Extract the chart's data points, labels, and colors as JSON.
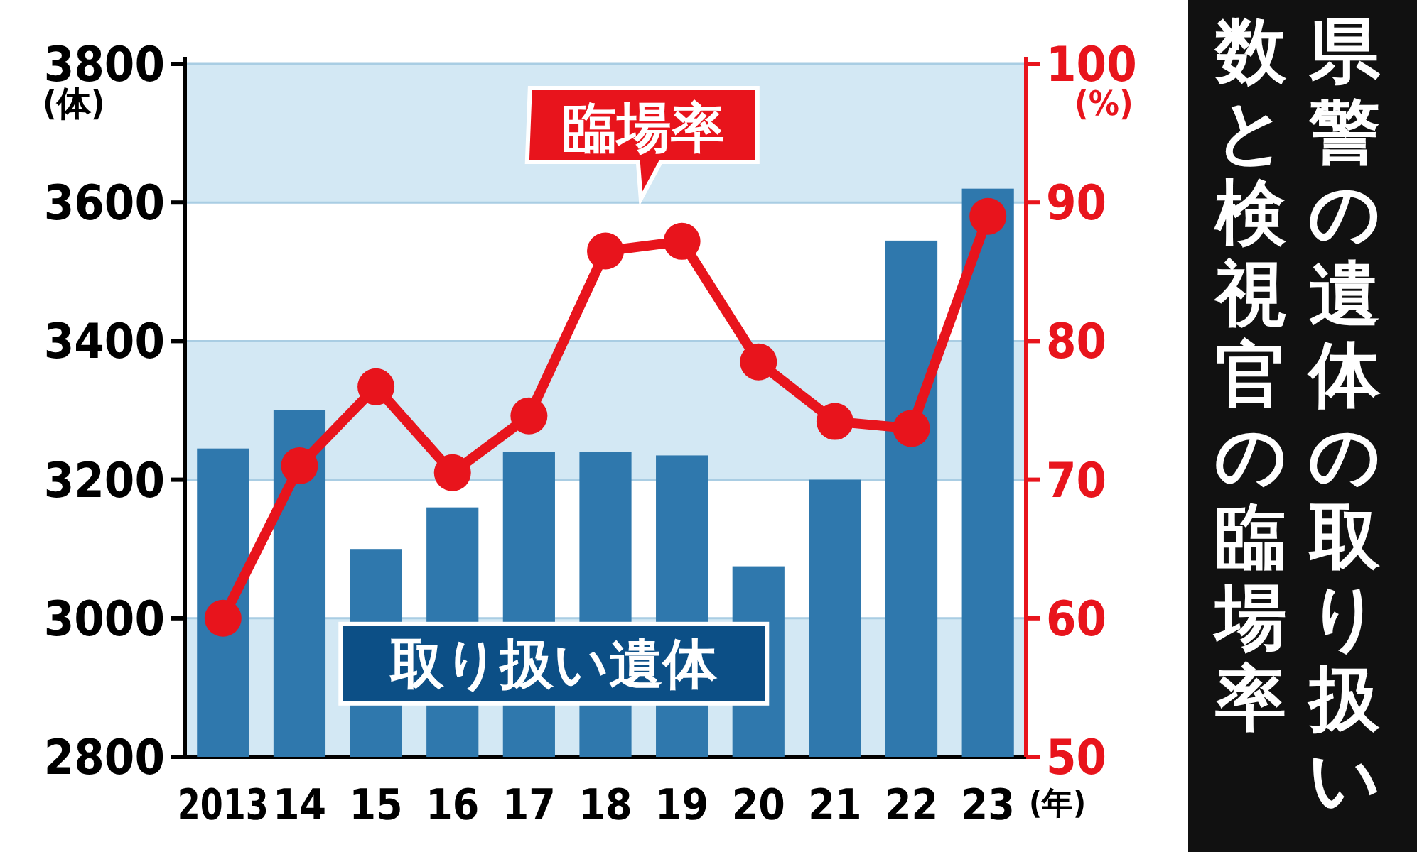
{
  "chart_data": {
    "type": "bar",
    "title": "県警の遺体の取り扱い",
    "subtitle": "数と検視官の臨場率",
    "categories": [
      "2013",
      "14",
      "15",
      "16",
      "17",
      "18",
      "19",
      "20",
      "21",
      "22",
      "23"
    ],
    "xlabel": "(年)",
    "ylabel": "(体)",
    "y2label": "(%)",
    "series": [
      {
        "name": "取り扱い遺体",
        "color": "#2f78ad",
        "values": [
          3245,
          3300,
          3100,
          3160,
          3240,
          3240,
          3235,
          3075,
          3200,
          3545,
          3620
        ]
      },
      {
        "name": "臨場率",
        "type": "line",
        "axis": "y2",
        "color": "#e8141c",
        "marker": "circle",
        "values": [
          60,
          71,
          76.7,
          70.5,
          74.6,
          86.5,
          87.2,
          78.5,
          74.2,
          73.7,
          89
        ]
      }
    ],
    "ylim": [
      2800,
      3800
    ],
    "yticks": [
      2800,
      3000,
      3200,
      3400,
      3600,
      3800
    ],
    "y2lim": [
      50,
      100
    ],
    "y2ticks": [
      50,
      60,
      70,
      80,
      90,
      100
    ],
    "grid": "y",
    "legend": false
  }
}
